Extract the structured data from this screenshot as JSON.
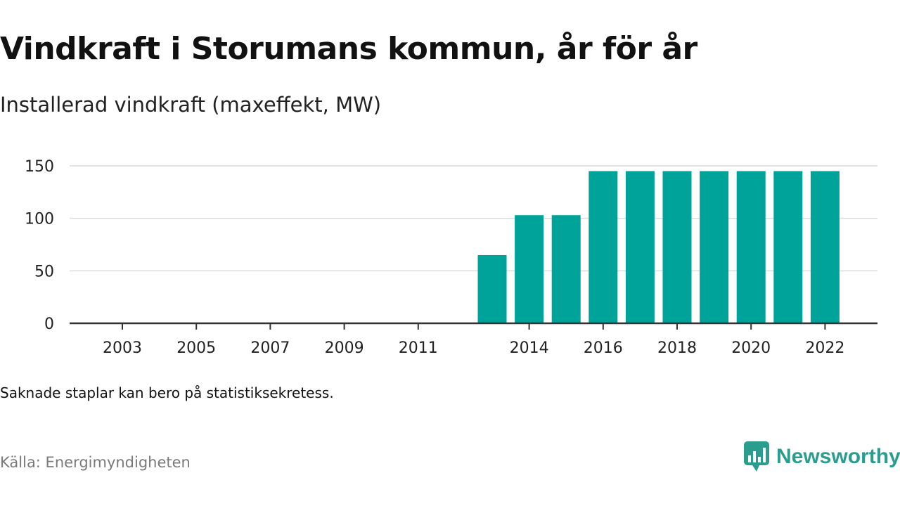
{
  "header": {
    "title": "Vindkraft i Storumans kommun, år för år",
    "subtitle": "Installerad vindkraft (maxeffekt, MW)"
  },
  "footer": {
    "note": "Saknade staplar kan bero på statistiksekretess.",
    "source": "Källa: Energimyndigheten",
    "brand": "Newsworthy",
    "brand_icon": "newsworthy-chart-bubble-icon"
  },
  "colors": {
    "bar": "#00a39a",
    "grid": "#dcdcdc",
    "axis": "#333333",
    "brand": "#2a9d8f"
  },
  "chart_data": {
    "type": "bar",
    "title": "Vindkraft i Storumans kommun, år för år",
    "subtitle": "Installerad vindkraft (maxeffekt, MW)",
    "categories": [
      "2003",
      "2004",
      "2005",
      "2006",
      "2007",
      "2008",
      "2009",
      "2010",
      "2011",
      "2012",
      "2013",
      "2014",
      "2015",
      "2016",
      "2017",
      "2018",
      "2019",
      "2020",
      "2021",
      "2022"
    ],
    "x_tick_labels": [
      "2003",
      "2005",
      "2007",
      "2009",
      "2011",
      "2014",
      "2016",
      "2018",
      "2020",
      "2022"
    ],
    "values": [
      null,
      null,
      null,
      null,
      null,
      null,
      null,
      null,
      null,
      null,
      65,
      103,
      103,
      145,
      145,
      145,
      145,
      145,
      145,
      145
    ],
    "ylim": [
      0,
      150
    ],
    "y_ticks": [
      0,
      50,
      100,
      150
    ],
    "xlabel": "",
    "ylabel": "",
    "grid": true,
    "legend": "none"
  }
}
